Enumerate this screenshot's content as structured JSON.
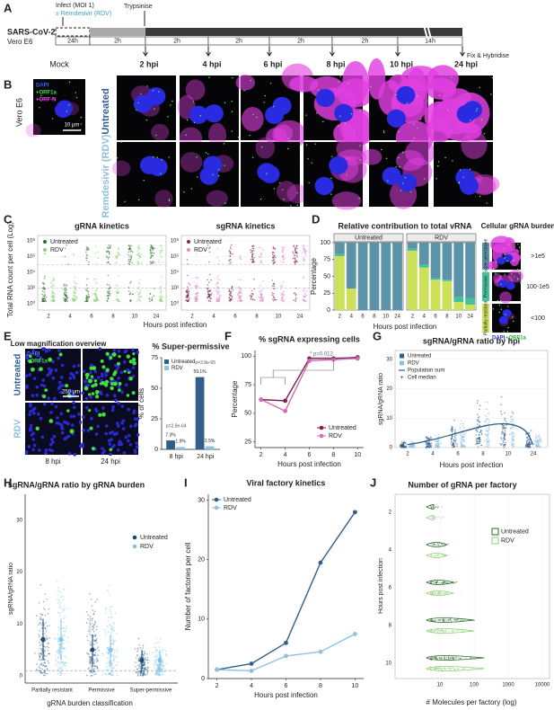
{
  "panel_letters": [
    "A",
    "B",
    "C",
    "D",
    "E",
    "F",
    "G",
    "H",
    "I",
    "J"
  ],
  "timeline": {
    "infect": "Infect (MOI 1)",
    "remdesivir": "± Remdesivir (RDV)",
    "trypsinise": "Trypsinise",
    "virus": "SARS-CoV-2",
    "cells": "Vero E6",
    "durations": [
      "24h",
      "2h",
      "2h",
      "2h",
      "2h",
      "2h",
      "14h"
    ],
    "timepoints": [
      "2 hpi",
      "4 hpi",
      "6 hpi",
      "8 hpi",
      "10 hpi",
      "24 hpi"
    ],
    "fix": "Fix & Hybridise"
  },
  "microscopy": {
    "cell_line": "Vero E6",
    "mock": "Mock",
    "channels": [
      "DAPI",
      "+ORF1a",
      "+ORF-N"
    ],
    "scale_bar": "10 μm",
    "rows": [
      "Untreated",
      "Remdesivir (RDV)"
    ]
  },
  "kinetics": {
    "titles": [
      "gRNA kinetics",
      "sgRNA kinetics"
    ],
    "y_label": "Total RNA count per cell (Log)",
    "x_label": "Hours post infection",
    "x_ticks": [
      "2",
      "4",
      "6",
      "8",
      "10",
      "24"
    ],
    "y_ticks": [
      "10⁰",
      "10²",
      "10⁴",
      "10⁶",
      "10⁸"
    ],
    "legend": [
      "Untreated",
      "RDV"
    ]
  },
  "burden": {
    "title": "Cellular gRNA burden",
    "thresholds": [
      ">1e5",
      "100-1e5",
      "<100"
    ],
    "channels": [
      "DAPI",
      "+ORF1a"
    ]
  },
  "overview": {
    "title": "Low magnification overview",
    "channels": [
      "DAPI",
      "+ORF1a"
    ],
    "rows": [
      "Untreated",
      "RDV"
    ],
    "columns": [
      "8 hpi",
      "24 hpi"
    ],
    "scale_bar": "250 μm"
  },
  "ratio_hpi": {
    "title": "sgRNA/gRNA ratio by hpi",
    "y_label": "sgRNA/gRNA ratio",
    "x_label": "Hours post infection",
    "x_ticks": [
      "2",
      "4",
      "6",
      "8",
      "10",
      "24"
    ],
    "y_ticks": [
      "0",
      "10",
      "20",
      "30"
    ],
    "legend": [
      "Untreated",
      "RDV",
      "Population sum",
      "Cell median"
    ]
  },
  "ratio_burden": {
    "title": "sgRNA/gRNA ratio by gRNA burden",
    "y_label": "sgRNA/gRNA ratio",
    "x_label": "gRNA burden classification",
    "categories": [
      "Partially resistant",
      "Permissive",
      "Super-permissive"
    ],
    "y_ticks": [
      "0",
      "10",
      "20",
      "30"
    ],
    "legend": [
      "Untreated",
      "RDV"
    ]
  },
  "factory_count": {
    "title": "Number of gRNA per factory",
    "y_label": "Hours post infection",
    "x_label": "# Molecules per factory (log)",
    "y_ticks": [
      "2",
      "4",
      "6",
      "8",
      "10"
    ],
    "x_ticks": [
      "10",
      "100",
      "1000",
      "10000"
    ],
    "legend": [
      "Untreated",
      "RDV"
    ]
  },
  "chart_data": [
    {
      "type": "stacked-bar",
      "title": "Relative contribution to total vRNA",
      "x_label": "Hours post infection",
      "y_label": "Percentage",
      "categories": [
        "2",
        "4",
        "6",
        "8",
        "10",
        "24"
      ],
      "ylim": [
        0,
        100
      ],
      "yticks": [
        0,
        25,
        50,
        75,
        100
      ],
      "facets": [
        {
          "name": "Untreated",
          "series": [
            {
              "name": "Partially resistant",
              "color": "#cde05a",
              "values": [
                80,
                32,
                0,
                0,
                0,
                0
              ]
            },
            {
              "name": "Permissive",
              "color": "#46c29a",
              "values": [
                3,
                0,
                0,
                0,
                0,
                0
              ]
            },
            {
              "name": "Super permissive",
              "color": "#5b93a8",
              "values": [
                17,
                68,
                100,
                100,
                100,
                100
              ]
            }
          ]
        },
        {
          "name": "RDV",
          "series": [
            {
              "name": "Partially resistant",
              "color": "#cde05a",
              "values": [
                88,
                63,
                45,
                43,
                12,
                8
              ]
            },
            {
              "name": "Permissive",
              "color": "#46c29a",
              "values": [
                3,
                5,
                2,
                2,
                8,
                10
              ]
            },
            {
              "name": "Super permissive",
              "color": "#5b93a8",
              "values": [
                9,
                32,
                53,
                55,
                80,
                82
              ]
            }
          ]
        }
      ]
    },
    {
      "type": "bar",
      "title": "% Super-permissive",
      "y_label": "% of cells",
      "categories": [
        "8 hpi",
        "24 hpi"
      ],
      "ylim": [
        0,
        75
      ],
      "yticks": [
        0,
        25,
        50,
        75
      ],
      "legend": "upper left",
      "annotations": [
        "p=2.8e-64",
        "p=3.8e-65"
      ],
      "series": [
        {
          "name": "Untreated",
          "color": "#2f5f8a",
          "values": [
            7.3,
            59.1
          ],
          "value_labels": [
            "7.3%",
            "59.1%"
          ]
        },
        {
          "name": "RDV",
          "color": "#8fc1e0",
          "values": [
            1.9,
            2.5
          ],
          "value_labels": [
            "1.9%",
            "2.5%"
          ]
        }
      ]
    },
    {
      "type": "line",
      "title": "% sgRNA expressing cells",
      "x_label": "Hours post infection",
      "y_label": "Percentage",
      "x": [
        2,
        4,
        6,
        8,
        10
      ],
      "xlim": [
        1.5,
        10.5
      ],
      "xticks": [
        2,
        4,
        6,
        8,
        10
      ],
      "ylim": [
        20,
        105
      ],
      "yticks": [
        25,
        50,
        75,
        100
      ],
      "legend": "lower right",
      "annotation": "* p=0.012",
      "series": [
        {
          "name": "Untreated",
          "color": "#7a1f4f",
          "values": [
            62,
            61,
            98,
            98,
            99
          ]
        },
        {
          "name": "RDV",
          "color": "#d46bb8",
          "values": [
            62,
            52,
            96,
            97,
            98
          ]
        }
      ]
    },
    {
      "type": "line",
      "title": "Viral factory kinetics",
      "x_label": "Hours post infection",
      "y_label": "Number of factories per cell",
      "x": [
        2,
        4,
        6,
        8,
        10
      ],
      "xlim": [
        1.5,
        10.5
      ],
      "xticks": [
        2,
        4,
        6,
        8,
        10
      ],
      "ylim": [
        0,
        31
      ],
      "yticks": [
        0,
        10,
        20,
        30
      ],
      "legend": "upper left",
      "series": [
        {
          "name": "Untreated",
          "color": "#2f5f8a",
          "values": [
            1.5,
            2.5,
            6,
            19.5,
            28
          ]
        },
        {
          "name": "RDV",
          "color": "#8fc1e0",
          "values": [
            1.5,
            1.3,
            3.8,
            4.5,
            7.5
          ]
        }
      ]
    }
  ]
}
